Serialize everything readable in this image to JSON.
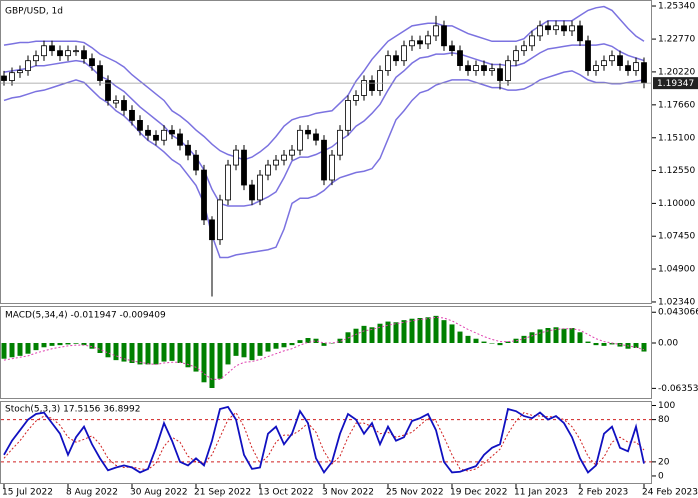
{
  "chart_data": [
    {
      "type": "candlestick",
      "title": "GBP/USD, 1d",
      "up_color": "#ffffff",
      "down_color": "#000000",
      "band_color": "#7b72e0",
      "categories": [
        "15 Jul 2022",
        null,
        null,
        null,
        null,
        null,
        null,
        null,
        "8 Aug 2022",
        null,
        null,
        null,
        null,
        null,
        null,
        null,
        "30 Aug 2022",
        null,
        null,
        null,
        null,
        null,
        null,
        null,
        "21 Sep 2022",
        null,
        null,
        null,
        null,
        null,
        null,
        null,
        "13 Oct 2022",
        null,
        null,
        null,
        null,
        null,
        null,
        null,
        "3 Nov 2022",
        null,
        null,
        null,
        null,
        null,
        null,
        null,
        "25 Nov 2022",
        null,
        null,
        null,
        null,
        null,
        null,
        null,
        "19 Dec 2022",
        null,
        null,
        null,
        null,
        null,
        null,
        null,
        "11 Jan 2023",
        null,
        null,
        null,
        null,
        null,
        null,
        null,
        "2 Feb 2023",
        null,
        null,
        null,
        null,
        null,
        null,
        null,
        "24 Feb 2023"
      ],
      "open": [
        1.199,
        1.1955,
        1.2016,
        1.2032,
        1.2109,
        1.2148,
        1.2225,
        1.2187,
        1.2148,
        1.2187,
        1.2187,
        1.2125,
        1.2071,
        1.1955,
        1.178,
        1.18,
        1.1723,
        1.1645,
        1.1568,
        1.1529,
        1.1491,
        1.1568,
        1.154,
        1.1452,
        1.1375,
        1.1259,
        1.0872,
        1.0718,
        1.1027,
        1.1298,
        1.1414,
        1.1143,
        1.1027,
        1.122,
        1.1298,
        1.1336,
        1.1375,
        1.1414,
        1.1568,
        1.154,
        1.1491,
        1.1182,
        1.1375,
        1.1568,
        1.18,
        1.1839,
        1.1955,
        1.1877,
        1.2032,
        1.2148,
        1.2109,
        1.2225,
        1.2264,
        1.224,
        1.2302,
        1.238,
        1.2225,
        1.2187,
        1.2071,
        1.2032,
        1.2071,
        1.2032,
        1.2047,
        1.1955,
        1.2109,
        1.2187,
        1.2225,
        1.2302,
        1.238,
        1.235,
        1.238,
        1.2341,
        1.238,
        1.2264,
        1.2032,
        1.2071,
        1.2109,
        1.2148,
        1.2071,
        1.2032,
        1.2094
      ],
      "high": [
        1.203,
        1.2056,
        1.2072,
        1.2149,
        1.2188,
        1.2265,
        1.2265,
        1.2227,
        1.2227,
        1.2227,
        1.2227,
        1.2165,
        1.2111,
        1.1995,
        1.184,
        1.184,
        1.1763,
        1.1685,
        1.1608,
        1.1569,
        1.1608,
        1.1608,
        1.158,
        1.1492,
        1.1415,
        1.1299,
        1.09,
        1.1067,
        1.1338,
        1.1454,
        1.1454,
        1.1183,
        1.126,
        1.1338,
        1.1376,
        1.1415,
        1.1454,
        1.1608,
        1.1608,
        1.158,
        1.1531,
        1.1415,
        1.1608,
        1.184,
        1.1879,
        1.1995,
        1.1995,
        1.2072,
        1.2188,
        1.2188,
        1.2265,
        1.2304,
        1.2304,
        1.2342,
        1.2457,
        1.242,
        1.2265,
        1.2227,
        1.2111,
        1.2111,
        1.2111,
        1.2087,
        1.2087,
        1.2149,
        1.2227,
        1.2265,
        1.2342,
        1.242,
        1.242,
        1.242,
        1.242,
        1.242,
        1.242,
        1.2304,
        1.2111,
        1.2149,
        1.2188,
        1.2188,
        1.2111,
        1.2134,
        1.2134
      ],
      "low": [
        1.1915,
        1.1915,
        1.1976,
        1.1992,
        1.2069,
        1.2108,
        1.2147,
        1.2108,
        1.2108,
        1.2147,
        1.2085,
        1.2031,
        1.1915,
        1.176,
        1.174,
        1.1683,
        1.1605,
        1.1528,
        1.1489,
        1.1451,
        1.1451,
        1.15,
        1.1412,
        1.1335,
        1.1219,
        1.0832,
        1.0277,
        1.0678,
        1.0987,
        1.1258,
        1.1103,
        1.0987,
        1.0987,
        1.118,
        1.1258,
        1.1296,
        1.1335,
        1.1374,
        1.15,
        1.1451,
        1.1142,
        1.1142,
        1.1335,
        1.1528,
        1.176,
        1.1799,
        1.1837,
        1.1837,
        1.1992,
        1.2069,
        1.2069,
        1.2185,
        1.22,
        1.22,
        1.2262,
        1.2185,
        1.2147,
        1.2031,
        1.1992,
        1.1992,
        1.1992,
        1.1992,
        1.1885,
        1.1915,
        1.2069,
        1.2147,
        1.2185,
        1.2262,
        1.231,
        1.231,
        1.2301,
        1.2301,
        1.2224,
        1.1992,
        1.1992,
        1.2031,
        1.2069,
        1.2031,
        1.1992,
        1.1992,
        1.1895
      ],
      "close": [
        1.1955,
        1.2016,
        1.2032,
        1.2109,
        1.2148,
        1.2225,
        1.2187,
        1.2148,
        1.2187,
        1.2187,
        1.2125,
        1.2071,
        1.1955,
        1.18,
        1.18,
        1.1723,
        1.1645,
        1.1568,
        1.1529,
        1.1491,
        1.1568,
        1.154,
        1.1452,
        1.1375,
        1.1259,
        1.0872,
        1.0718,
        1.1027,
        1.1298,
        1.1414,
        1.1143,
        1.1027,
        1.122,
        1.1298,
        1.1336,
        1.1375,
        1.1414,
        1.1568,
        1.154,
        1.1491,
        1.1182,
        1.1375,
        1.1568,
        1.18,
        1.1839,
        1.1955,
        1.1877,
        1.2032,
        1.2148,
        1.2109,
        1.2225,
        1.2264,
        1.224,
        1.2302,
        1.238,
        1.2225,
        1.2187,
        1.2071,
        1.2032,
        1.2071,
        1.2032,
        1.2047,
        1.1955,
        1.2109,
        1.2187,
        1.2225,
        1.2302,
        1.238,
        1.235,
        1.238,
        1.2341,
        1.238,
        1.2264,
        1.2032,
        1.2071,
        1.2109,
        1.2148,
        1.2071,
        1.2032,
        1.2094,
        1.19347
      ],
      "series": [
        {
          "color": "#7b72e0",
          "values": [
            1.223,
            1.224,
            1.225,
            1.225,
            1.226,
            1.226,
            1.226,
            1.226,
            1.226,
            1.226,
            1.225,
            1.221,
            1.216,
            1.213,
            1.21,
            1.206,
            1.2,
            1.195,
            1.19,
            1.185,
            1.18,
            1.172,
            1.168,
            1.163,
            1.157,
            1.152,
            1.146,
            1.141,
            1.138,
            1.136,
            1.134,
            1.136,
            1.14,
            1.145,
            1.152,
            1.16,
            1.165,
            1.167,
            1.168,
            1.17,
            1.171,
            1.172,
            1.178,
            1.184,
            1.195,
            1.203,
            1.212,
            1.219,
            1.226,
            1.23,
            1.234,
            1.238,
            1.239,
            1.24,
            1.24,
            1.238,
            1.238,
            1.235,
            1.232,
            1.23,
            1.228,
            1.226,
            1.226,
            1.226,
            1.226,
            1.228,
            1.234,
            1.238,
            1.242,
            1.242,
            1.242,
            1.242,
            1.246,
            1.25,
            1.252,
            1.253,
            1.25,
            1.243,
            1.236,
            1.23,
            1.226
          ]
        },
        {
          "color": "#7b72e0",
          "values": [
            1.202,
            1.203,
            1.204,
            1.205,
            1.207,
            1.207,
            1.208,
            1.209,
            1.21,
            1.211,
            1.21,
            1.205,
            1.199,
            1.196,
            1.191,
            1.187,
            1.181,
            1.175,
            1.17,
            1.165,
            1.16,
            1.153,
            1.149,
            1.143,
            1.136,
            1.126,
            1.111,
            1.1,
            1.098,
            1.098,
            1.098,
            1.099,
            1.102,
            1.105,
            1.109,
            1.12,
            1.133,
            1.136,
            1.136,
            1.138,
            1.141,
            1.144,
            1.149,
            1.153,
            1.16,
            1.164,
            1.17,
            1.177,
            1.188,
            1.198,
            1.203,
            1.209,
            1.213,
            1.214,
            1.216,
            1.216,
            1.217,
            1.216,
            1.214,
            1.212,
            1.21,
            1.208,
            1.208,
            1.207,
            1.207,
            1.209,
            1.213,
            1.217,
            1.22,
            1.221,
            1.222,
            1.223,
            1.223,
            1.223,
            1.223,
            1.224,
            1.222,
            1.218,
            1.215,
            1.213,
            1.211
          ]
        },
        {
          "color": "#7b72e0",
          "values": [
            1.18,
            1.182,
            1.183,
            1.185,
            1.187,
            1.188,
            1.19,
            1.192,
            1.194,
            1.196,
            1.194,
            1.188,
            1.182,
            1.178,
            1.172,
            1.168,
            1.162,
            1.155,
            1.149,
            1.145,
            1.14,
            1.134,
            1.13,
            1.122,
            1.114,
            1.1,
            1.075,
            1.058,
            1.058,
            1.06,
            1.061,
            1.062,
            1.063,
            1.064,
            1.066,
            1.08,
            1.1,
            1.104,
            1.104,
            1.106,
            1.11,
            1.116,
            1.12,
            1.122,
            1.124,
            1.125,
            1.127,
            1.135,
            1.15,
            1.165,
            1.172,
            1.18,
            1.186,
            1.188,
            1.192,
            1.194,
            1.196,
            1.196,
            1.196,
            1.194,
            1.192,
            1.19,
            1.19,
            1.188,
            1.188,
            1.189,
            1.192,
            1.196,
            1.198,
            1.2,
            1.202,
            1.203,
            1.2,
            1.196,
            1.194,
            1.194,
            1.193,
            1.193,
            1.194,
            1.195,
            1.196
          ]
        }
      ],
      "last_price": 1.19347,
      "ylim": [
        1.0226,
        1.2573
      ],
      "yticks": [
        {
          "value": 1.2534,
          "label": "1.25340"
        },
        {
          "value": 1.2277,
          "label": "1.22770"
        },
        {
          "value": 1.2022,
          "label": "1.20220"
        },
        {
          "value": 1.1766,
          "label": "1.17660"
        },
        {
          "value": 1.151,
          "label": "1.15100"
        },
        {
          "value": 1.1255,
          "label": "1.12550"
        },
        {
          "value": 1.1,
          "label": "1.10000"
        },
        {
          "value": 1.0745,
          "label": "1.07450"
        },
        {
          "value": 1.049,
          "label": "1.04900"
        },
        {
          "value": 1.0234,
          "label": "1.02340"
        }
      ]
    },
    {
      "type": "macd",
      "title": "MACD(5,34,4) -0.011947 -0.009409",
      "series": [
        {
          "color": "#008000",
          "values": [
            -0.022,
            -0.02,
            -0.018,
            -0.015,
            -0.01,
            -0.006,
            -0.004,
            -0.003,
            -0.002,
            -0.001,
            -0.003,
            -0.008,
            -0.014,
            -0.02,
            -0.024,
            -0.026,
            -0.028,
            -0.03,
            -0.03,
            -0.03,
            -0.026,
            -0.025,
            -0.028,
            -0.034,
            -0.04,
            -0.055,
            -0.063,
            -0.05,
            -0.03,
            -0.018,
            -0.02,
            -0.024,
            -0.018,
            -0.012,
            -0.008,
            -0.006,
            -0.003,
            0.004,
            0.007,
            0.006,
            -0.004,
            0.0,
            0.006,
            0.015,
            0.02,
            0.024,
            0.022,
            0.027,
            0.03,
            0.029,
            0.032,
            0.034,
            0.035,
            0.036,
            0.038,
            0.032,
            0.026,
            0.016,
            0.01,
            0.006,
            0.002,
            0.0,
            -0.003,
            0.002,
            0.006,
            0.01,
            0.015,
            0.019,
            0.021,
            0.022,
            0.02,
            0.021,
            0.015,
            0.002,
            -0.003,
            -0.004,
            -0.002,
            -0.005,
            -0.008,
            -0.007,
            -0.011947
          ]
        },
        {
          "color": "#e040b0",
          "values": [
            -0.024,
            -0.022,
            -0.02,
            -0.018,
            -0.014,
            -0.011,
            -0.008,
            -0.006,
            -0.004,
            -0.003,
            -0.003,
            -0.005,
            -0.009,
            -0.014,
            -0.018,
            -0.022,
            -0.025,
            -0.027,
            -0.029,
            -0.03,
            -0.028,
            -0.027,
            -0.027,
            -0.03,
            -0.034,
            -0.043,
            -0.051,
            -0.051,
            -0.042,
            -0.032,
            -0.027,
            -0.026,
            -0.023,
            -0.019,
            -0.015,
            -0.011,
            -0.008,
            -0.003,
            0.001,
            0.003,
            0.0,
            0.0,
            0.002,
            0.007,
            0.012,
            0.017,
            0.019,
            0.022,
            0.025,
            0.027,
            0.029,
            0.031,
            0.033,
            0.034,
            0.036,
            0.035,
            0.031,
            0.025,
            0.019,
            0.014,
            0.009,
            0.005,
            0.002,
            0.002,
            0.003,
            0.006,
            0.01,
            0.014,
            0.017,
            0.019,
            0.02,
            0.02,
            0.018,
            0.012,
            0.006,
            0.002,
            0.0,
            -0.002,
            -0.004,
            -0.006,
            -0.009409
          ]
        }
      ],
      "ylim": [
        -0.077,
        0.0504
      ],
      "yticks": [
        0.043066,
        {
          "value": 0,
          "label": "0.00"
        },
        -0.063534
      ]
    },
    {
      "type": "stochastic",
      "title": "Stoch(5,3,3) 17.5156 36.8992",
      "level_color": "#d02020",
      "levels": [
        80,
        20
      ],
      "series": [
        {
          "color": "#1010c0",
          "values": [
            30,
            50,
            65,
            80,
            88,
            90,
            75,
            60,
            30,
            55,
            70,
            45,
            25,
            8,
            12,
            15,
            12,
            5,
            10,
            40,
            75,
            50,
            20,
            15,
            25,
            15,
            50,
            95,
            98,
            80,
            30,
            10,
            12,
            60,
            70,
            45,
            60,
            92,
            75,
            25,
            5,
            20,
            60,
            88,
            80,
            60,
            75,
            45,
            70,
            50,
            55,
            78,
            82,
            88,
            65,
            20,
            5,
            6,
            10,
            14,
            30,
            40,
            45,
            95,
            92,
            85,
            82,
            90,
            80,
            85,
            75,
            55,
            25,
            5,
            15,
            60,
            70,
            40,
            35,
            70,
            17.5156
          ]
        },
        {
          "color": "#d02020",
          "values": [
            25,
            38,
            50,
            65,
            78,
            85,
            82,
            72,
            55,
            48,
            52,
            57,
            45,
            25,
            15,
            12,
            13,
            10,
            9,
            18,
            42,
            55,
            48,
            28,
            20,
            18,
            30,
            55,
            80,
            90,
            70,
            40,
            18,
            28,
            48,
            58,
            58,
            65,
            75,
            62,
            35,
            17,
            28,
            55,
            75,
            75,
            70,
            60,
            62,
            55,
            58,
            62,
            72,
            82,
            78,
            55,
            30,
            10,
            7,
            10,
            18,
            28,
            38,
            60,
            78,
            90,
            86,
            85,
            84,
            84,
            80,
            70,
            52,
            28,
            15,
            27,
            48,
            55,
            48,
            48,
            36.8992
          ]
        }
      ],
      "ylim": [
        -10,
        105
      ],
      "yticks": [
        100,
        80,
        20,
        0
      ]
    }
  ]
}
